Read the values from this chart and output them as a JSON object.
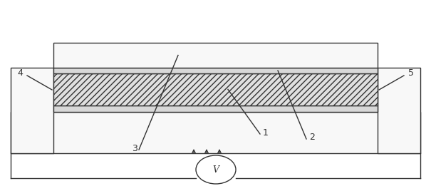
{
  "bg_color": "#ffffff",
  "line_color": "#333333",
  "gray_light": "#d8d8d8",
  "gray_mid": "#b8b8b8",
  "white_fill": "#f8f8f8",
  "hatch_fill": "#e0e0e0",
  "fig_width": 6.05,
  "fig_height": 2.68,
  "lw": 1.0
}
